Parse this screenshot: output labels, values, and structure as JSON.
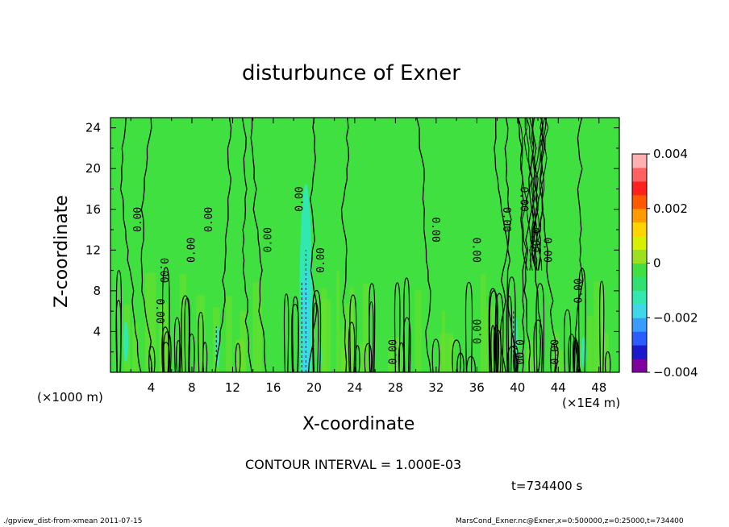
{
  "chart_data": {
    "type": "heatmap",
    "title": "disturbunce of Exner",
    "xlabel": "X-coordinate",
    "ylabel": "Z-coordinate",
    "x_unit_left": "(×1000 m)",
    "x_unit_right": "(×1E4 m)",
    "x_ticks": [
      "4",
      "8",
      "12",
      "16",
      "20",
      "24",
      "28",
      "32",
      "36",
      "40",
      "44",
      "48"
    ],
    "y_ticks": [
      "4",
      "8",
      "12",
      "16",
      "20",
      "24"
    ],
    "xlim": [
      0,
      50
    ],
    "ylim": [
      0,
      25
    ],
    "contour_label": "0.00",
    "colorbar": {
      "ticks": [
        "0.004",
        "0.002",
        "0",
        "−0.002",
        "−0.004"
      ],
      "range": [
        -0.004,
        0.004
      ],
      "colors": [
        "#8000a0",
        "#1a1acc",
        "#2a5cff",
        "#3a9cff",
        "#40d8e8",
        "#30e8b0",
        "#30e070",
        "#40e040",
        "#9ce020",
        "#d8f000",
        "#ffd400",
        "#ff9a00",
        "#ff5a00",
        "#ff2020",
        "#ff6060",
        "#ffb0b0"
      ]
    },
    "contour_interval_text": "CONTOUR INTERVAL = 1.000E-03",
    "time_text": "t=734400 s"
  },
  "footer": {
    "left": "./gpview_dist-from-xmean  2011-07-15",
    "right": "MarsCond_Exner.nc@Exner,x=0:500000,z=0:25000,t=734400"
  }
}
